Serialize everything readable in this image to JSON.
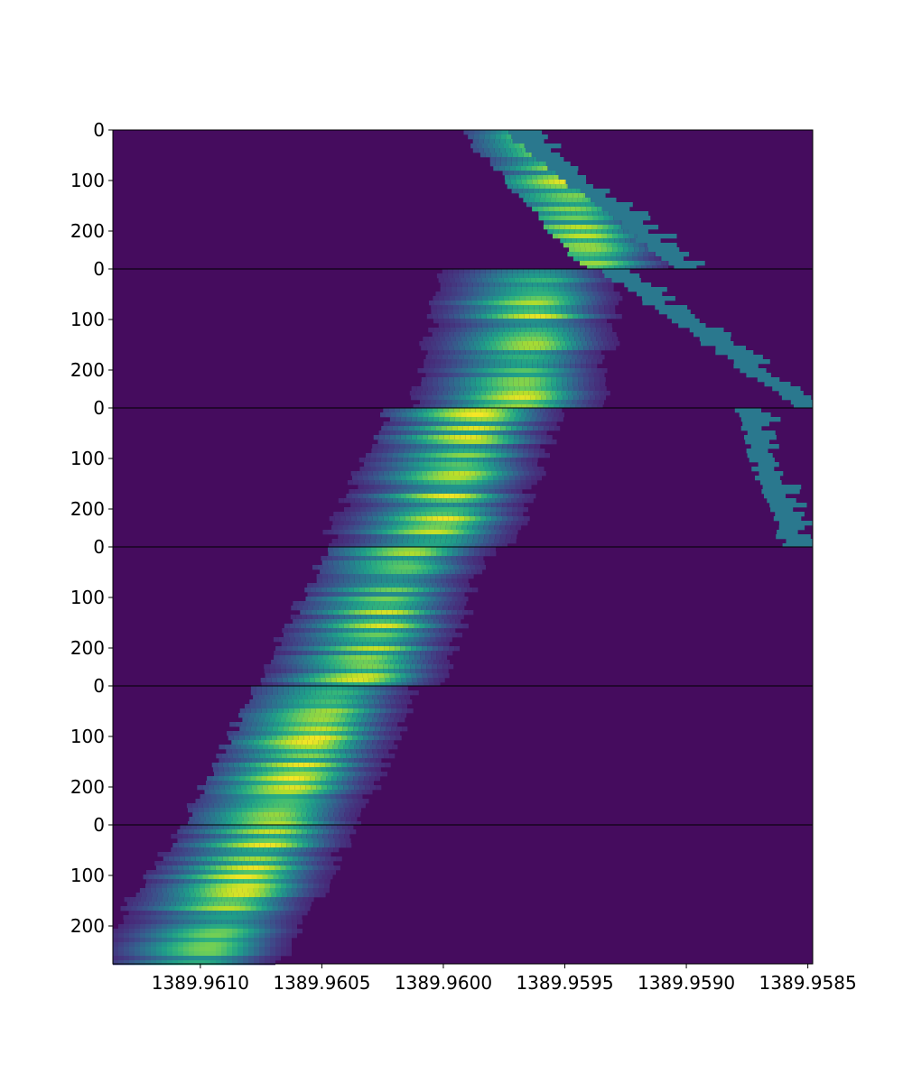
{
  "chart_data": {
    "type": "heatmap",
    "title": "",
    "xlabel": "",
    "ylabel": "",
    "colormap": "viridis",
    "x_direction": "decreasing",
    "xlim": [
      1389.96136,
      1389.95848
    ],
    "x_ticks": [
      1389.961,
      1389.9605,
      1389.96,
      1389.9595,
      1389.959,
      1389.9585
    ],
    "x_tick_labels": [
      "1389.9610",
      "1389.9605",
      "1389.9600",
      "1389.9595",
      "1389.9590",
      "1389.9585"
    ],
    "panels": [
      {
        "ylim": [
          0,
          275
        ],
        "y_ticks": [
          0,
          100,
          200
        ],
        "y_tick_labels": [
          "0",
          "100",
          "200"
        ],
        "band_start": [
          1389.95985,
          1389.95935
        ],
        "band_center": [
          1389.95955,
          1389.9594
        ],
        "masked_region": {
          "y_range": [
            0,
            275
          ],
          "x_start": [
            1389.95975,
            1389.95905
          ]
        }
      },
      {
        "ylim": [
          0,
          275
        ],
        "y_ticks": [
          0,
          100,
          200
        ],
        "y_tick_labels": [
          "0",
          "100",
          "200"
        ],
        "band_start": [
          1389.95995,
          1389.96005
        ],
        "band_center": [
          1389.9596,
          1389.9597
        ],
        "masked_region": {
          "y_range": [
            0,
            275
          ],
          "x_start": [
            1389.95935,
            1389.95855
          ]
        }
      },
      {
        "ylim": [
          0,
          275
        ],
        "y_ticks": [
          0,
          100,
          200
        ],
        "y_tick_labels": [
          "0",
          "100",
          "200"
        ],
        "band_start": [
          1389.96015,
          1389.96045
        ],
        "band_center": [
          1389.95985,
          1389.96005
        ],
        "masked_region": {
          "y_range": [
            0,
            275
          ],
          "x_start": [
            1389.9588,
            1389.9586
          ]
        }
      },
      {
        "ylim": [
          0,
          275
        ],
        "y_ticks": [
          0,
          100,
          200
        ],
        "y_tick_labels": [
          "0",
          "100",
          "200"
        ],
        "band_start": [
          1389.9604,
          1389.9607
        ],
        "band_center": [
          1389.96015,
          1389.96035
        ]
      },
      {
        "ylim": [
          0,
          275
        ],
        "y_ticks": [
          0,
          100,
          200
        ],
        "y_tick_labels": [
          "0",
          "100",
          "200"
        ],
        "band_start": [
          1389.9607,
          1389.961
        ],
        "band_center": [
          1389.96045,
          1389.9607
        ]
      },
      {
        "ylim": [
          0,
          275
        ],
        "y_ticks": [
          0,
          100,
          200
        ],
        "y_tick_labels": [
          "0",
          "100",
          "200"
        ],
        "band_start": [
          1389.961,
          1389.9614
        ],
        "band_center": [
          1389.9607,
          1389.961
        ]
      }
    ]
  }
}
